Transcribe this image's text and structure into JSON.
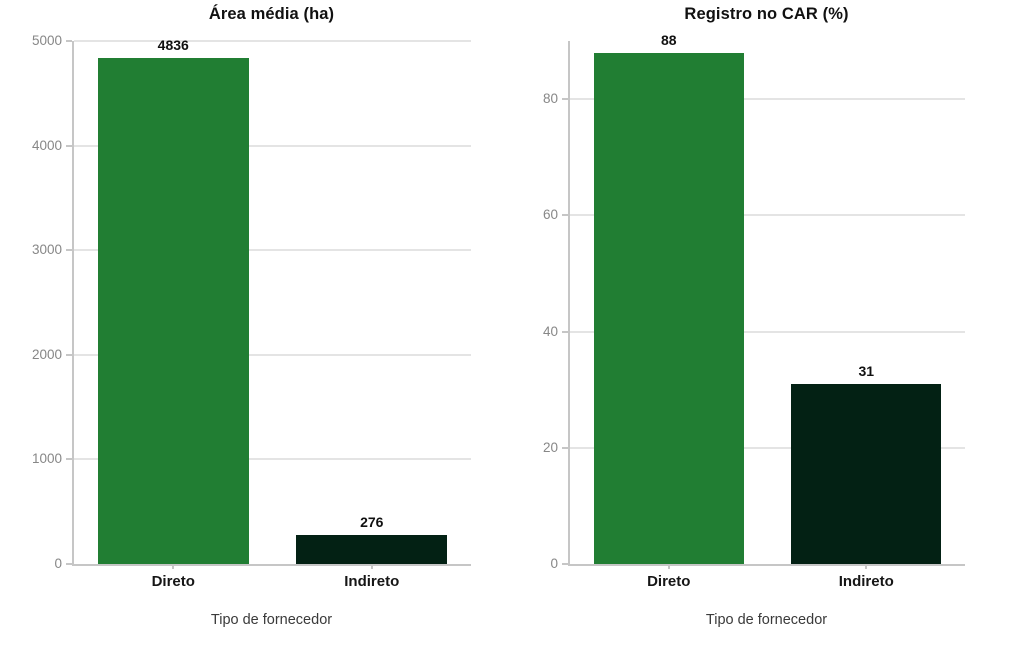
{
  "chart_data": [
    {
      "type": "bar",
      "title": "Área média (ha)",
      "xlabel": "Tipo de fornecedor",
      "categories": [
        "Direto",
        "Indireto"
      ],
      "values": [
        4836,
        276
      ],
      "value_labels": [
        "4836",
        "276"
      ],
      "bar_colors": [
        "#217e33",
        "#032114"
      ],
      "ylim": [
        0,
        5000
      ],
      "yticks": [
        0,
        1000,
        2000,
        3000,
        4000,
        5000
      ],
      "grid": true,
      "legend": "none"
    },
    {
      "type": "bar",
      "title": "Registro no CAR (%)",
      "xlabel": "Tipo de fornecedor",
      "categories": [
        "Direto",
        "Indireto"
      ],
      "values": [
        88,
        31
      ],
      "value_labels": [
        "88",
        "31"
      ],
      "bar_colors": [
        "#217e33",
        "#032114"
      ],
      "ylim": [
        0,
        90
      ],
      "yticks": [
        0,
        20,
        40,
        60,
        80
      ],
      "grid": true,
      "legend": "none"
    }
  ]
}
